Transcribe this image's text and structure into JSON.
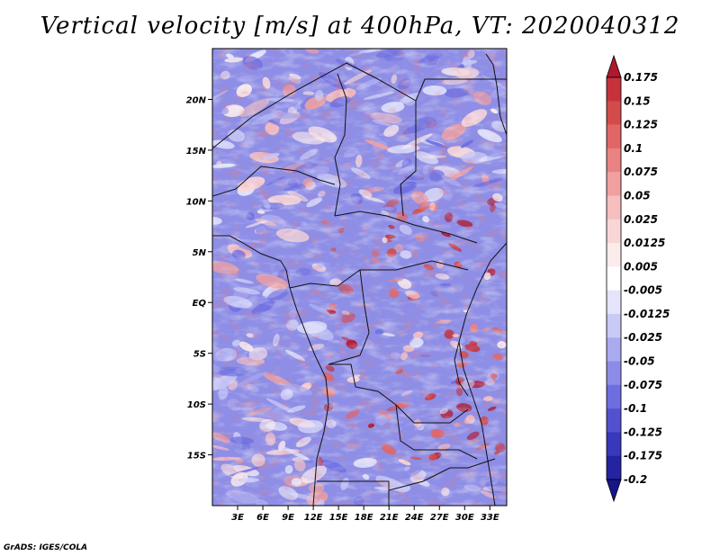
{
  "chart_data": {
    "type": "heatmap",
    "title": "Vertical velocity [m/s] at 400hPa, VT: 2020040312",
    "variable": "Vertical velocity",
    "units": "m/s",
    "level": "400hPa",
    "valid_time": "2020040312",
    "lon_range": [
      0,
      35
    ],
    "lat_range": [
      -20,
      25
    ],
    "x_tick_labels": [
      "3E",
      "6E",
      "9E",
      "12E",
      "15E",
      "18E",
      "21E",
      "24E",
      "27E",
      "30E",
      "33E"
    ],
    "x_tick_values": [
      3,
      6,
      9,
      12,
      15,
      18,
      21,
      24,
      27,
      30,
      33
    ],
    "y_tick_labels": [
      "20N",
      "15N",
      "10N",
      "5N",
      "EQ",
      "5S",
      "10S",
      "15S"
    ],
    "y_tick_values": [
      20,
      15,
      10,
      5,
      0,
      -5,
      -10,
      -15
    ],
    "colorbar": {
      "levels": [
        "0.175",
        "0.15",
        "0.125",
        "0.1",
        "0.075",
        "0.05",
        "0.025",
        "0.0125",
        "0.005",
        "-0.005",
        "-0.0125",
        "-0.025",
        "-0.05",
        "-0.075",
        "-0.1",
        "-0.125",
        "-0.175",
        "-0.2"
      ],
      "colors": [
        "#b2182b",
        "#c5323c",
        "#d34b4b",
        "#e06666",
        "#e98282",
        "#f0a0a0",
        "#f6bebe",
        "#f9d6d6",
        "#fcebeb",
        "#ffffff",
        "#e4e4fb",
        "#c9c9f6",
        "#aaaaf0",
        "#8c8ce8",
        "#6e6ee0",
        "#5252cf",
        "#3838bb",
        "#2424a0",
        "#16168a"
      ]
    },
    "background_color": "#8e8ee6"
  },
  "footer": {
    "credit": "GrADS: IGES/COLA"
  }
}
